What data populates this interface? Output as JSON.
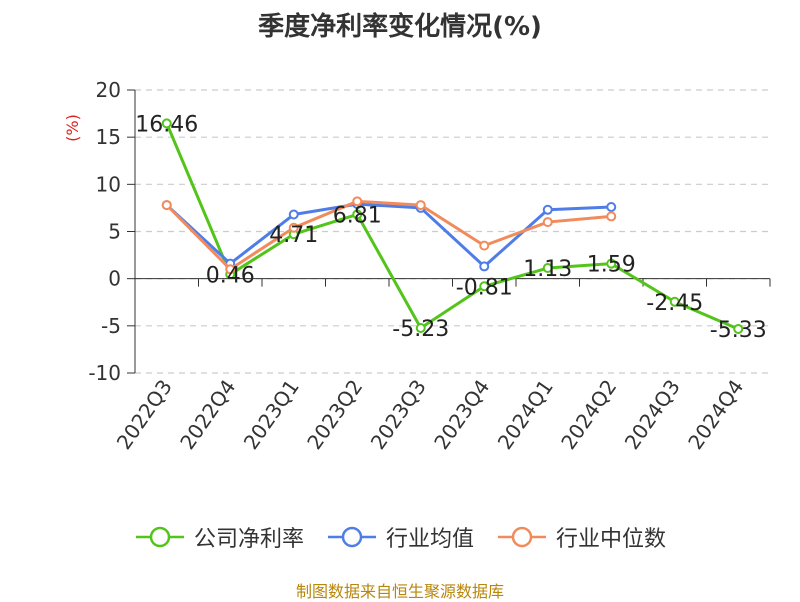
{
  "chart_data": {
    "type": "line",
    "title": "季度净利率变化情况(%)",
    "ylabel": "(%)",
    "xlabel": "",
    "ylim": [
      -10,
      20
    ],
    "yticks": [
      20,
      15,
      10,
      5,
      0,
      -5,
      -10
    ],
    "ytick_labels": [
      "20",
      "15",
      "10",
      "5",
      "0",
      "-5",
      "-10"
    ],
    "categories": [
      "2022Q3",
      "2022Q4",
      "2023Q1",
      "2023Q2",
      "2023Q3",
      "2023Q4",
      "2024Q1",
      "2024Q2",
      "2024Q3",
      "2024Q4"
    ],
    "grid": true,
    "legend_position": "bottom",
    "series": [
      {
        "name": "公司净利率",
        "color": "#52c41a",
        "values": [
          16.46,
          0.46,
          4.71,
          6.81,
          -5.23,
          -0.81,
          1.13,
          1.59,
          -2.45,
          -5.33
        ],
        "labels": [
          "16.46",
          "0.46",
          "4.71",
          "6.81",
          "-5.23",
          "-0.81",
          "1.13",
          "1.59",
          "-2.45",
          "-5.33"
        ]
      },
      {
        "name": "行业均值",
        "color": "#4f7de8",
        "values": [
          7.8,
          1.6,
          6.8,
          7.9,
          7.5,
          1.3,
          7.3,
          7.6,
          null,
          null
        ]
      },
      {
        "name": "行业中位数",
        "color": "#f28b5b",
        "values": [
          7.8,
          1.0,
          5.4,
          8.2,
          7.8,
          3.5,
          6.0,
          6.6,
          null,
          null
        ]
      }
    ]
  },
  "footer": {
    "source": "制图数据来自恒生聚源数据库"
  }
}
